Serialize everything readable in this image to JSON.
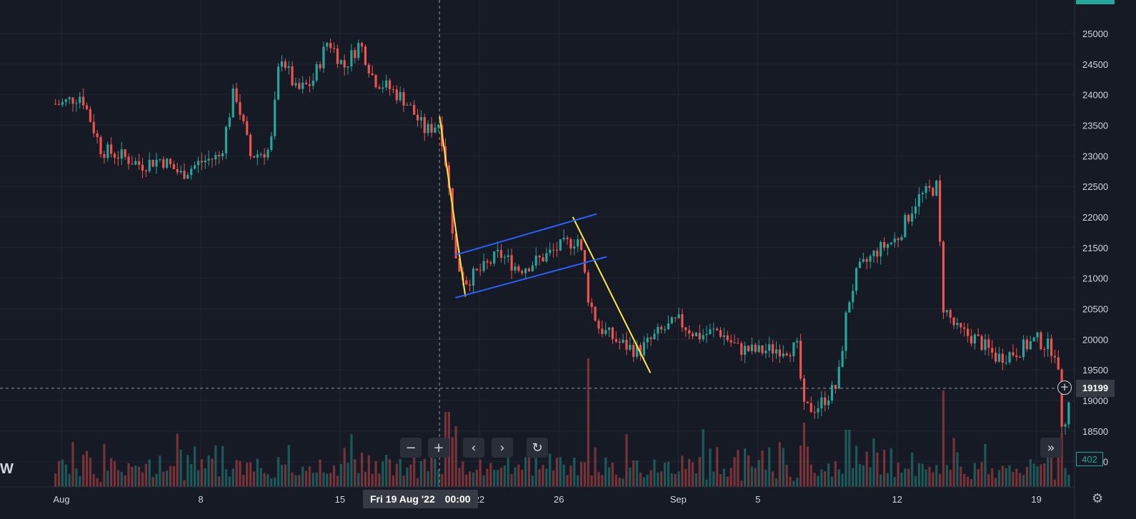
{
  "chart_data": {
    "type": "candlestick",
    "timeframe": "hourly",
    "colors": {
      "up": "#26a69a",
      "down": "#ef5350",
      "trendline": "#ffeb3b",
      "channel": "#2962ff",
      "background": "#161a25",
      "grid": "#232734"
    },
    "y_ticks": [
      25000,
      24500,
      24000,
      23500,
      23000,
      22500,
      22000,
      21500,
      21000,
      20500,
      20000,
      19500,
      19000,
      18500,
      18000
    ],
    "y_tick_labels": [
      "25000",
      "24500",
      "24000",
      "23500",
      "23000",
      "22500",
      "22000",
      "21500",
      "21000",
      "20500",
      "20000",
      "19500",
      "19000",
      "18500",
      "18000"
    ],
    "ylim": [
      17950,
      25600
    ],
    "x_ticks": [
      {
        "label": "Aug",
        "day": 1
      },
      {
        "label": "8",
        "day": 8
      },
      {
        "label": "15",
        "day": 15
      },
      {
        "label": "22",
        "day": 22
      },
      {
        "label": "26",
        "day": 26
      },
      {
        "label": "Sep",
        "day": 32
      },
      {
        "label": "5",
        "day": 36
      },
      {
        "label": "12",
        "day": 43
      },
      {
        "label": "19",
        "day": 50
      }
    ],
    "close_path": [
      [
        0.0,
        23850
      ],
      [
        1,
        24000
      ],
      [
        2,
        23100
      ],
      [
        3,
        23000
      ],
      [
        4,
        22850
      ],
      [
        5,
        22950
      ],
      [
        6,
        22700
      ],
      [
        7,
        22900
      ],
      [
        8,
        23000
      ],
      [
        8.7,
        24100
      ],
      [
        9.5,
        23000
      ],
      [
        10.5,
        23100
      ],
      [
        11,
        24700
      ],
      [
        11.8,
        24050
      ],
      [
        12.6,
        24200
      ],
      [
        13.4,
        24900
      ],
      [
        14.2,
        24450
      ],
      [
        15,
        24850
      ],
      [
        15.7,
        24250
      ],
      [
        16.5,
        24100
      ],
      [
        17.3,
        23900
      ],
      [
        18.3,
        23400
      ],
      [
        19,
        23550
      ],
      [
        19.4,
        22700
      ],
      [
        19.8,
        21300
      ],
      [
        20.3,
        20950
      ],
      [
        21.2,
        21150
      ],
      [
        22,
        21400
      ],
      [
        23,
        21150
      ],
      [
        24,
        21300
      ],
      [
        25,
        21500
      ],
      [
        26,
        21650
      ],
      [
        26.5,
        20650
      ],
      [
        27,
        20200
      ],
      [
        28,
        19950
      ],
      [
        29,
        19800
      ],
      [
        30,
        20100
      ],
      [
        31,
        20300
      ],
      [
        32,
        20050
      ],
      [
        33,
        20150
      ],
      [
        34,
        19850
      ],
      [
        35,
        19800
      ],
      [
        36,
        19850
      ],
      [
        37,
        19850
      ],
      [
        37.3,
        18850
      ],
      [
        38,
        18900
      ],
      [
        39,
        19250
      ],
      [
        39.5,
        20550
      ],
      [
        40,
        21100
      ],
      [
        41,
        21450
      ],
      [
        42,
        21650
      ],
      [
        43,
        22300
      ],
      [
        44,
        22500
      ],
      [
        44.3,
        20550
      ],
      [
        45,
        20150
      ],
      [
        46,
        20000
      ],
      [
        47,
        19700
      ],
      [
        48,
        19800
      ],
      [
        49,
        20000
      ],
      [
        50,
        19800
      ],
      [
        50.3,
        18550
      ],
      [
        51,
        19400
      ],
      [
        52,
        19100
      ]
    ],
    "volume_pattern": [
      26,
      31,
      35,
      44,
      20,
      51,
      38,
      20,
      63,
      46,
      34,
      25,
      12,
      11,
      60,
      25,
      47,
      56,
      19,
      21,
      20,
      31,
      35,
      24,
      32,
      28,
      31,
      34,
      24,
      28,
      49,
      28,
      42,
      47,
      27,
      62,
      65,
      16,
      46,
      27,
      48,
      23,
      46,
      22,
      39,
      42,
      53,
      14,
      46,
      37
    ],
    "volume_spikes": [
      {
        "day": 19.4,
        "height": 105
      },
      {
        "day": 19.8,
        "height": 85
      },
      {
        "day": 26.5,
        "height": 180
      },
      {
        "day": 26.8,
        "height": 55
      },
      {
        "day": 37.3,
        "height": 90
      },
      {
        "day": 39.5,
        "height": 80
      },
      {
        "day": 44.3,
        "height": 135
      },
      {
        "day": 50.3,
        "height": 75
      },
      {
        "day": 51,
        "height": 85
      }
    ],
    "drawings": {
      "trendlines": [
        {
          "from": [
            19.0,
            23650
          ],
          "to": [
            20.3,
            20700
          ]
        },
        {
          "from": [
            25.7,
            22000
          ],
          "to": [
            29.6,
            19450
          ]
        }
      ],
      "channel": {
        "upper": {
          "from": [
            19.8,
            21380
          ],
          "to": [
            26.9,
            22050
          ]
        },
        "lower": {
          "from": [
            19.8,
            20680
          ],
          "to": [
            27.4,
            21350
          ]
        }
      }
    },
    "crosshair": {
      "day": 19.0,
      "price": 19199
    }
  },
  "crosshair_labels": {
    "date": "Fri 19 Aug '22",
    "time": "00:00",
    "price": "19199",
    "volume": "402"
  },
  "controls": {
    "zoom_out": "−",
    "zoom_in": "+",
    "scroll_left": "‹",
    "scroll_right": "›",
    "reset": "↻",
    "jump_latest": "»"
  },
  "branding": {
    "logo_fragment": "W"
  },
  "icons": {
    "settings": "gear-icon",
    "add_alert": "plus-circle-icon"
  }
}
